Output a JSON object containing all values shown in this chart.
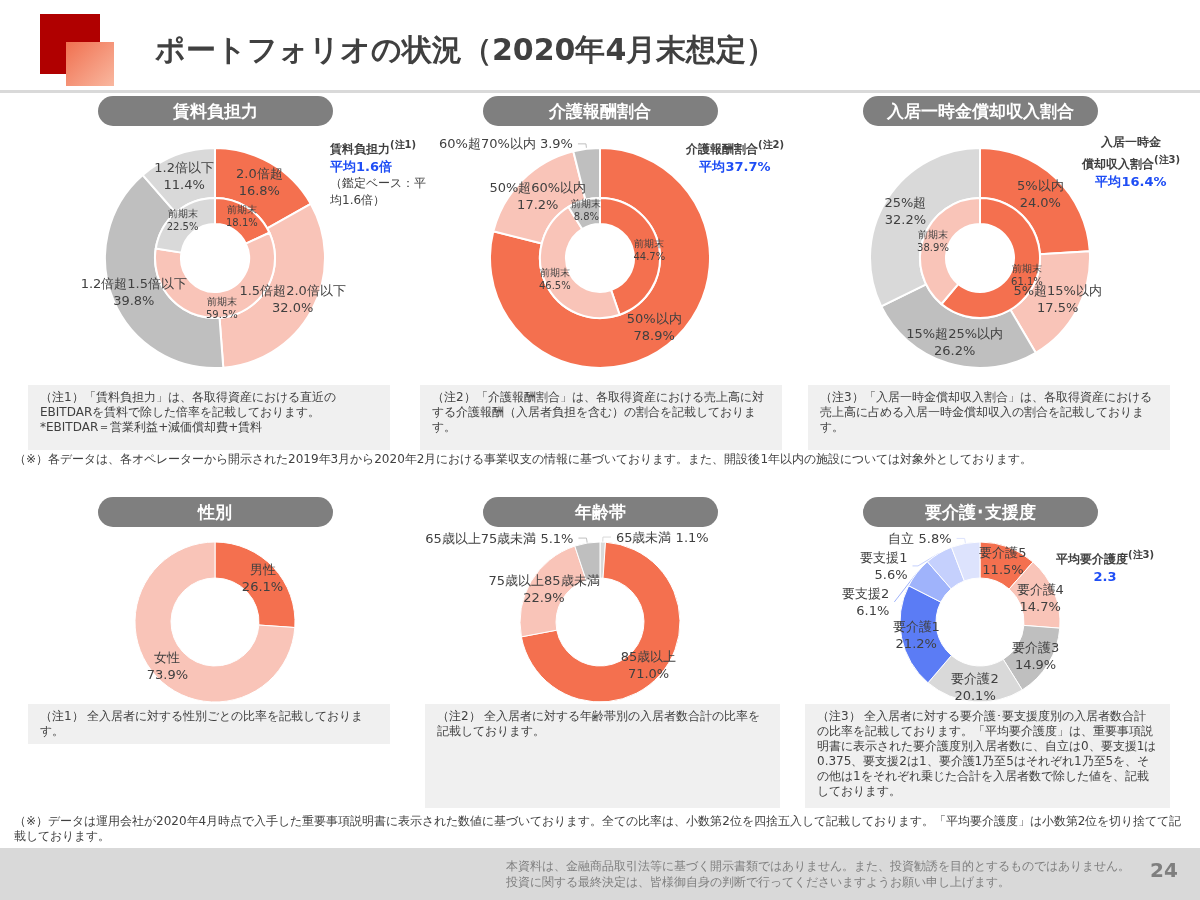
{
  "chart_data": [
    {
      "type": "donut",
      "title": "賃料負担力",
      "legend": false,
      "categories": [
        "2.0倍超",
        "1.5倍超2.0倍以下",
        "1.2倍超1.5倍以下",
        "1.2倍以下"
      ],
      "colors": [
        "#f4704f",
        "#f9c4b8",
        "#bfbfbf",
        "#d9d9d9"
      ],
      "series": [
        {
          "values": [
            16.8,
            32.0,
            39.8,
            11.4
          ],
          "value_labels": [
            "16.8%",
            "32.0%",
            "39.8%",
            "11.4%"
          ]
        },
        {
          "name": "前期末",
          "values": [
            18.1,
            59.5,
            null,
            22.5
          ],
          "value_labels": [
            "18.1%",
            "59.5%",
            null,
            "22.5%"
          ]
        }
      ],
      "annotations": [
        "ポートフォリオの状況（2020年4月末想定）",
        "賃料負担力$^{(注1)}$",
        "平均1.6倍",
        "（鑑定ベース：平均1.6倍）",
        "（注1）「賃料負担力」は、各取得資産における直近のEBITDARを賃料で除した倍率を記載しております。*EBITDAR＝営業利益+減価償却費+賃料",
        "（※）各データは、各オペレーターから開示された2019年3月から2020年2月における事業収支の情報に基づいております。また、開設後1年以内の施設については対象外としております。"
      ]
    },
    {
      "type": "donut",
      "title": "介護報酬割合",
      "legend": false,
      "categories": [
        "50%以内",
        "50%超60%以内",
        "60%超70%以内"
      ],
      "colors": [
        "#f4704f",
        "#f9c4b8",
        "#bfbfbf"
      ],
      "series": [
        {
          "values": [
            78.9,
            17.2,
            3.9
          ],
          "value_labels": [
            "78.9%",
            "17.2%",
            "3.9%"
          ]
        },
        {
          "name": "前期末",
          "values": [
            44.7,
            46.5,
            8.8
          ],
          "value_labels": [
            "44.7%",
            "46.5%",
            "8.8%"
          ]
        }
      ],
      "annotations": [
        "介護報酬割合$^{(注2)}$",
        "平均37.7%",
        "（注2）「介護報酬割合」は、各取得資産における売上高に対する介護報酬（入居者負担を含む）の割合を記載しております。"
      ]
    },
    {
      "type": "donut",
      "title": "入居一時金償却収入割合",
      "legend": false,
      "categories": [
        "5%以内",
        "5%超15%以内",
        "15%超25%以内",
        "25%超"
      ],
      "colors": [
        "#f4704f",
        "#f9c4b8",
        "#bfbfbf",
        "#d9d9d9"
      ],
      "series": [
        {
          "values": [
            24.0,
            17.5,
            26.2,
            32.2
          ],
          "value_labels": [
            "24.0%",
            "17.5%",
            "26.2%",
            "32.2%"
          ]
        },
        {
          "name": "前期末",
          "values": [
            61.1,
            38.9,
            null,
            null
          ],
          "value_labels": [
            "61.1%",
            "38.9%",
            null,
            null
          ]
        }
      ],
      "annotations": [
        "入居一時金",
        "償却収入割合$^{(注3)}$",
        "平均16.4%",
        "（注3）「入居一時金償却収入割合」は、各取得資産における売上高に占める入居一時金償却収入の割合を記載しております。"
      ]
    },
    {
      "type": "donut",
      "title": "性別",
      "legend": false,
      "categories": [
        "男性",
        "女性"
      ],
      "colors": [
        "#f4704f",
        "#f9c4b8"
      ],
      "values": [
        26.1,
        73.9
      ],
      "value_labels": [
        "26.1%",
        "73.9%"
      ],
      "annotations": [
        "（注1） 全入居者に対する性別ごとの比率を記載しております。"
      ]
    },
    {
      "type": "donut",
      "title": "年齢帯",
      "legend": false,
      "categories": [
        "65歳未満",
        "85歳以上",
        "75歳以上85歳未満",
        "65歳以上75歳未満"
      ],
      "colors": [
        "#d9d9d9",
        "#f4704f",
        "#f9c4b8",
        "#bfbfbf"
      ],
      "values": [
        1.1,
        71.0,
        22.9,
        5.1
      ],
      "value_labels": [
        "1.1%",
        "71.0%",
        "22.9%",
        "5.1%"
      ],
      "annotations": [
        "（注2） 全入居者に対する年齢帯別の入居者数合計の比率を記載しております。"
      ]
    },
    {
      "type": "donut",
      "title": "要介護･支援度",
      "legend": false,
      "categories": [
        "要介護5",
        "要介護4",
        "要介護3",
        "要介護2",
        "要介護1",
        "要支援2",
        "要支援1",
        "自立"
      ],
      "colors": [
        "#f4704f",
        "#f9c4b8",
        "#bfbfbf",
        "#d9d9d9",
        "#5b7cf5",
        "#9fb3fb",
        "#c5d0fd",
        "#dde3fd"
      ],
      "values": [
        11.5,
        14.7,
        14.9,
        20.1,
        21.2,
        6.1,
        5.6,
        5.8
      ],
      "value_labels": [
        "11.5%",
        "14.7%",
        "14.9%",
        "20.1%",
        "21.2%",
        "6.1%",
        "5.6%",
        "5.8%"
      ],
      "annotations": [
        "平均要介護度$^{(注3)}$",
        "2.3",
        "（注3） 全入居者に対する要介護･要支援度別の入居者数合計の比率を記載しております。「平均要介護度」は、重要事項説明書に表示された要介護度別入居者数に、自立は0、要支援1は0.375、要支援2は1、要介護1乃至5はそれぞれ1乃至5を、その他は1をそれぞれ乗じた合計を入居者数で除した値を、記載しております。",
        "（※）データは運用会社が2020年4月時点で入手した重要事項説明書に表示された数値に基づいております。全ての比率は、小数第2位を四捨五入して記載しております。「平均要介護度」は小数第2位を切り捨てて記載しております。",
        "本資料は、金融商品取引法等に基づく開示書類ではありません。また、投資勧誘を目的とするものではありません。",
        "投資に関する最終決定は、皆様御自身の判断で行ってくださいますようお願い申し上げます。",
        "24"
      ]
    }
  ]
}
